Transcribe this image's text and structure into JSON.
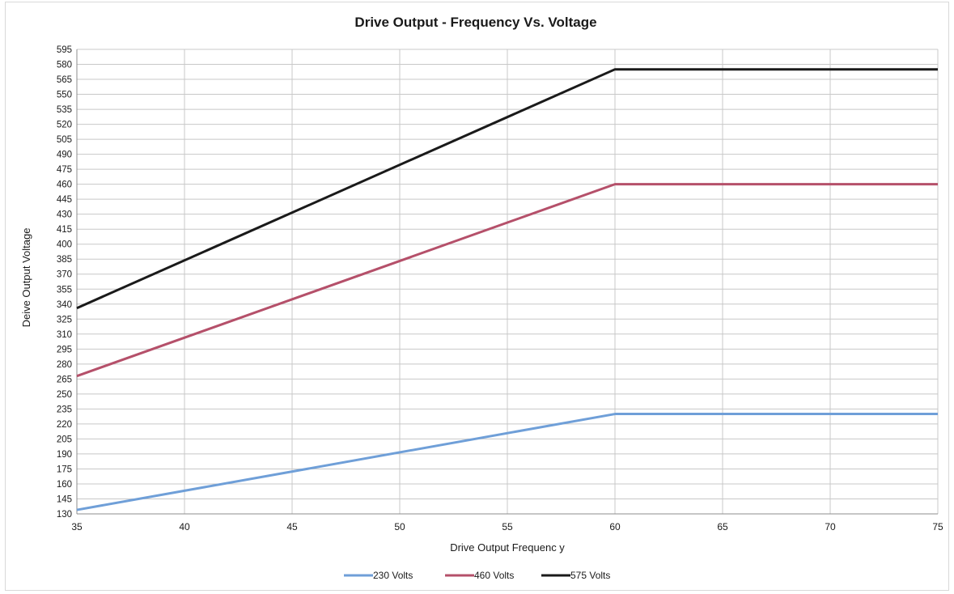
{
  "chart_data": {
    "type": "line",
    "title": "Drive Output - Frequency Vs. Voltage",
    "xlabel": "Drive Output Frequenc y",
    "ylabel": "Deive Output Voltage",
    "xlim": [
      35,
      75
    ],
    "ylim": [
      130,
      595
    ],
    "x_ticks": [
      35,
      40,
      45,
      50,
      55,
      60,
      65,
      70,
      75
    ],
    "y_ticks": [
      130,
      145,
      160,
      175,
      190,
      205,
      220,
      235,
      250,
      265,
      280,
      295,
      310,
      325,
      340,
      355,
      370,
      385,
      400,
      415,
      430,
      445,
      460,
      475,
      490,
      505,
      520,
      535,
      550,
      565,
      580,
      595
    ],
    "grid": true,
    "legend_position": "bottom",
    "series": [
      {
        "name": "230 Volts",
        "color": "#6f9fd8",
        "x": [
          35,
          60,
          75
        ],
        "y": [
          134,
          230,
          230
        ]
      },
      {
        "name": "460 Volts",
        "color": "#b5506a",
        "x": [
          35,
          60,
          75
        ],
        "y": [
          268,
          460,
          460
        ]
      },
      {
        "name": "575 Volts",
        "color": "#1a1a1a",
        "x": [
          35,
          60,
          75
        ],
        "y": [
          336,
          575,
          575
        ]
      }
    ]
  }
}
